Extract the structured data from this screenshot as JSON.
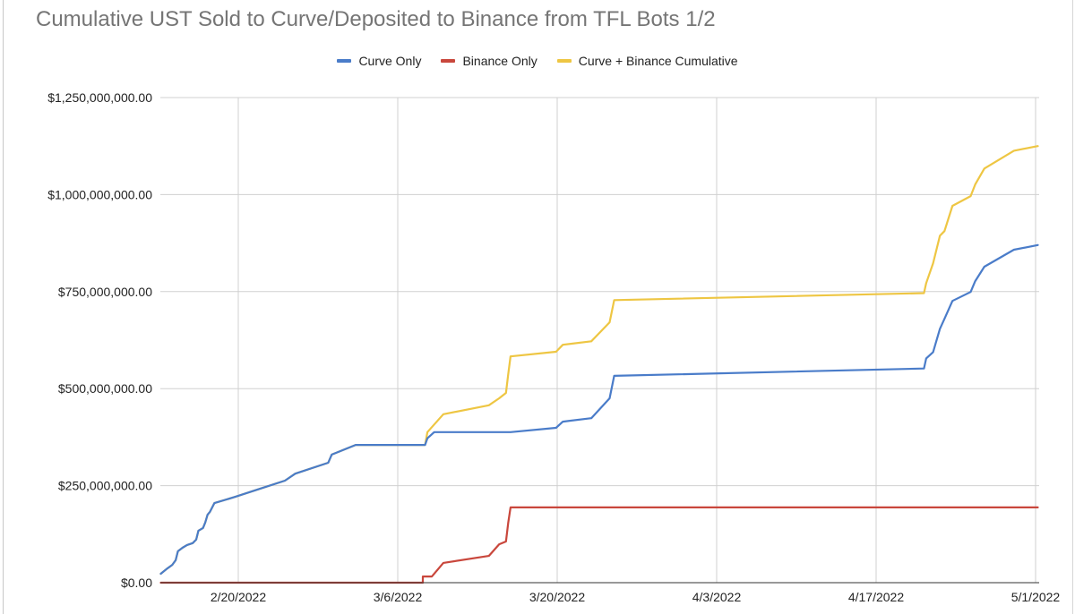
{
  "chart_data": {
    "type": "line",
    "title": "Cumulative UST Sold to Curve/Deposited to Binance from TFL Bots 1/2",
    "xlabel": "",
    "ylabel": "",
    "x_unit": "days since 2/20/2022",
    "y_unit": "USD (millions)",
    "xlim": [
      -6.9,
      71.5
    ],
    "ylim": [
      0,
      1250
    ],
    "grid": true,
    "legend_position": "top",
    "x_ticks": [
      {
        "value": 0,
        "label": "2/20/2022"
      },
      {
        "value": 14,
        "label": "3/6/2022"
      },
      {
        "value": 28,
        "label": "3/20/2022"
      },
      {
        "value": 42,
        "label": "4/3/2022"
      },
      {
        "value": 56,
        "label": "4/17/2022"
      },
      {
        "value": 70,
        "label": "5/1/2022"
      }
    ],
    "y_ticks": [
      {
        "value": 0,
        "label": "$0.00"
      },
      {
        "value": 250,
        "label": "$250,000,000.00"
      },
      {
        "value": 500,
        "label": "$500,000,000.00"
      },
      {
        "value": 750,
        "label": "$750,000,000.00"
      },
      {
        "value": 1000,
        "label": "$1,000,000,000.00"
      },
      {
        "value": 1250,
        "label": "$1,250,000,000.00"
      }
    ],
    "series": [
      {
        "name": "Curve Only",
        "color": "#4a7cc9",
        "x": [
          -6.8,
          -6.3,
          -5.8,
          -5.5,
          -5.3,
          -4.9,
          -4.5,
          -4.0,
          -3.7,
          -3.5,
          -3.1,
          -2.9,
          -2.7,
          -2.5,
          -2.1,
          -0.3,
          1.9,
          4.1,
          5.0,
          7.9,
          8.2,
          10.3,
          16.4,
          16.6,
          17.2,
          23.9,
          27.9,
          28.5,
          31.0,
          32.6,
          33.0,
          60.2,
          60.4,
          61.0,
          61.6,
          62.0,
          62.7,
          64.3,
          64.7,
          65.5,
          68.1,
          70.2
        ],
        "values": [
          23,
          35,
          46,
          58,
          81,
          90,
          97,
          102,
          111,
          134,
          141,
          155,
          175,
          182,
          205,
          221,
          242,
          263,
          281,
          309,
          330,
          355,
          355,
          372,
          388,
          388,
          399,
          415,
          424,
          475,
          533,
          552,
          578,
          594,
          654,
          680,
          726,
          749,
          777,
          814,
          858,
          870
        ]
      },
      {
        "name": "Binance Only",
        "color": "#c9473c",
        "x": [
          -6.8,
          16.2,
          16.2,
          17.0,
          18.0,
          22.0,
          22.9,
          23.5,
          23.7,
          23.9,
          70.2
        ],
        "values": [
          0,
          0,
          16,
          16,
          51,
          69,
          99,
          106,
          154,
          194,
          194
        ]
      },
      {
        "name": "Curve + Binance Cumulative",
        "color": "#eec643",
        "x": [
          -6.8,
          -6.3,
          -5.8,
          -5.5,
          -5.3,
          -4.9,
          -4.5,
          -4.0,
          -3.7,
          -3.5,
          -3.1,
          -2.9,
          -2.7,
          -2.5,
          -2.1,
          -0.3,
          1.9,
          4.1,
          5.0,
          7.9,
          8.2,
          10.3,
          16.4,
          16.6,
          18.0,
          22.0,
          22.9,
          23.5,
          23.7,
          23.9,
          27.9,
          28.5,
          31.0,
          32.6,
          33.0,
          60.2,
          60.4,
          61.0,
          61.6,
          62.0,
          62.7,
          64.3,
          64.7,
          65.5,
          68.1,
          70.2
        ],
        "values": [
          23,
          35,
          46,
          58,
          81,
          90,
          97,
          102,
          111,
          134,
          141,
          155,
          175,
          182,
          205,
          221,
          242,
          263,
          281,
          309,
          330,
          355,
          355,
          388,
          434,
          457,
          475,
          489,
          537,
          583,
          595,
          613,
          622,
          671,
          728,
          746,
          772,
          823,
          894,
          906,
          971,
          996,
          1026,
          1067,
          1113,
          1125
        ]
      }
    ]
  }
}
